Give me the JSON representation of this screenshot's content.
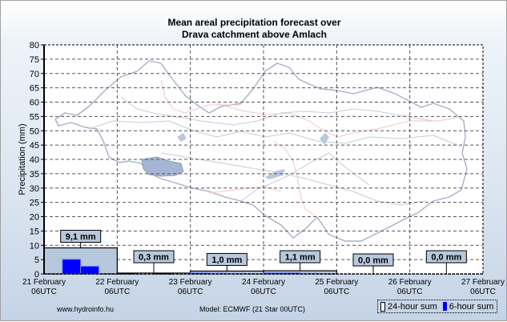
{
  "chart_data": {
    "type": "bar",
    "title": "Mean areal precipitation forecast over",
    "subtitle": "Drava catchment above Amlach",
    "ylabel": "Precipitation (mm)",
    "xlabel": "",
    "ylim": [
      0,
      80
    ],
    "yticks": [
      0,
      5,
      10,
      15,
      20,
      25,
      30,
      35,
      40,
      45,
      50,
      55,
      60,
      65,
      70,
      75,
      80
    ],
    "xtick_labels": [
      [
        "21 February",
        "06UTC"
      ],
      [
        "22 February",
        "06UTC"
      ],
      [
        "23 February",
        "06UTC"
      ],
      [
        "24 February",
        "06UTC"
      ],
      [
        "25 February",
        "06UTC"
      ],
      [
        "26 February",
        "06UTC"
      ],
      [
        "27 February",
        "06UTC"
      ]
    ],
    "grid": true,
    "series": [
      {
        "name": "24-hour sum",
        "color": "#b8c8dc",
        "values": [
          9.1,
          0.3,
          1.0,
          1.1,
          0.0,
          0.0
        ],
        "labels": [
          "9,1 mm",
          "0,3 mm",
          "1,0 mm",
          "1,1 mm",
          "0,0 mm",
          "0,0 mm"
        ]
      },
      {
        "name": "6-hour sum",
        "color": "#0000ff",
        "values": [
          0.0,
          5.1,
          2.7,
          0.0,
          0.0,
          0.1,
          0.0,
          0.1,
          0.4,
          0.3,
          0.2,
          0.1,
          0.4,
          0.4,
          0.2,
          0.1,
          0,
          0,
          0,
          0,
          0,
          0,
          0,
          0
        ]
      }
    ],
    "legend": "bottom-right"
  },
  "footer": {
    "source": "www.hydroinfo.hu",
    "model": "Model: ECMWF (21  Star 00UTC)"
  },
  "legend_labels": {
    "daily": "24-hour sum",
    "six": "6-hour sum"
  }
}
